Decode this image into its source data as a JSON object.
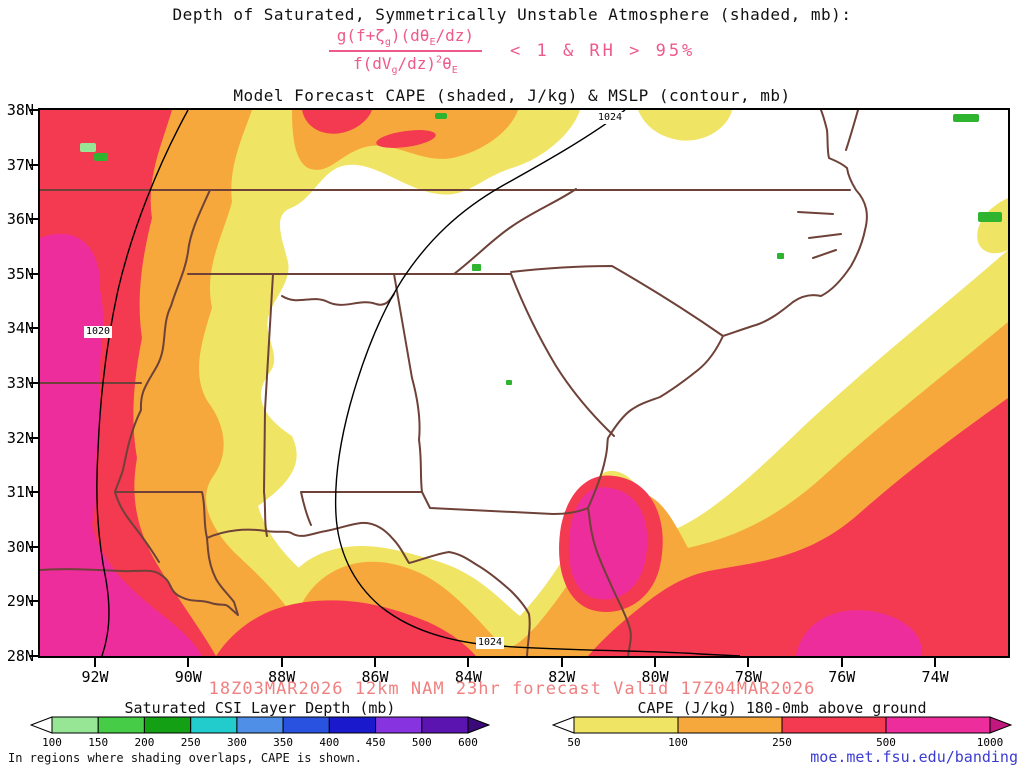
{
  "header": {
    "line1": "Depth of Saturated, Symmetrically Unstable Atmosphere (shaded, mb):",
    "formula": {
      "num": [
        "g(f+ζ",
        "g",
        ")(dθ",
        "E",
        "/dz)"
      ],
      "den": [
        "f(dV",
        "g",
        "/dz)",
        "2",
        "θ",
        "E"
      ],
      "condition": "< 1 & RH > 95%"
    },
    "line2": "Model Forecast CAPE (shaded, J/kg) & MSLP (contour, mb)"
  },
  "map": {
    "lat_labels": [
      "38N",
      "37N",
      "36N",
      "35N",
      "34N",
      "33N",
      "32N",
      "31N",
      "30N",
      "29N",
      "28N"
    ],
    "lon_labels": [
      "92W",
      "90W",
      "88W",
      "86W",
      "84W",
      "82W",
      "80W",
      "78W",
      "76W",
      "74W"
    ],
    "contour_labels": [
      {
        "text": "1024"
      },
      {
        "text": "1020"
      },
      {
        "text": "1024"
      }
    ]
  },
  "footer": {
    "valid_line": "18Z03MAR2026 12km NAM 23hr forecast Valid 17Z04MAR2026",
    "note": "In regions where shading overlaps, CAPE is shown.",
    "link": "moe.met.fsu.edu/banding"
  },
  "legends": {
    "csi": {
      "title": "Saturated CSI Layer Depth (mb)",
      "ticks": [
        "100",
        "150",
        "200",
        "250",
        "300",
        "350",
        "400",
        "450",
        "500",
        "600"
      ],
      "colors": [
        "#ffffff",
        "#96e696",
        "#46cc46",
        "#14a014",
        "#22cccc",
        "#4f8fe8",
        "#2a52e0",
        "#1a1acc",
        "#8833e0",
        "#5c14b0",
        "#3a0a78"
      ]
    },
    "cape": {
      "title": "CAPE (J/kg) 180-0mb above ground",
      "ticks": [
        "50",
        "100",
        "250",
        "500",
        "1000"
      ],
      "colors": [
        "#ffffff",
        "#f0e464",
        "#f6a83c",
        "#f43a50",
        "#ee2d9c",
        "#c2187e"
      ]
    }
  },
  "colors": {
    "cape_yellow": "#f0e464",
    "cape_orange": "#f6a83c",
    "cape_red": "#f43a50",
    "cape_magenta": "#ee2d9c",
    "csi_green": "#2fb42f",
    "csi_light_green": "#96e696",
    "state_border": "#6e4238",
    "mslp_contour": "#000000",
    "formula_pink": "#ee5a8a",
    "valid_pink": "#f08080",
    "link_blue": "#3c3cd2"
  }
}
